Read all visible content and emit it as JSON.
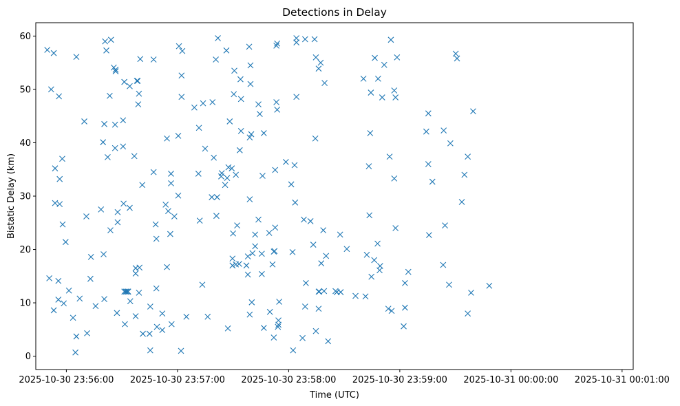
{
  "chart_data": {
    "type": "scatter",
    "title": "Detections in Delay",
    "xlabel": "Time (UTC)",
    "ylabel": "Bistatic Delay (km)",
    "x_unit": "seconds after 2025-10-30 23:56:00 UTC",
    "xlim": [
      -16.5,
      306
    ],
    "ylim": [
      -2.5,
      62.5
    ],
    "x_ticks": [
      {
        "value": 0,
        "label": "2025-10-30 23:56:00"
      },
      {
        "value": 60,
        "label": "2025-10-30 23:57:00"
      },
      {
        "value": 120,
        "label": "2025-10-30 23:58:00"
      },
      {
        "value": 180,
        "label": "2025-10-30 23:59:00"
      },
      {
        "value": 240,
        "label": "2025-10-31 00:00:00"
      },
      {
        "value": 300,
        "label": "2025-10-31 00:01:00"
      }
    ],
    "y_ticks": [
      {
        "value": 0,
        "label": "0"
      },
      {
        "value": 10,
        "label": "10"
      },
      {
        "value": 20,
        "label": "20"
      },
      {
        "value": 30,
        "label": "30"
      },
      {
        "value": 40,
        "label": "40"
      },
      {
        "value": 50,
        "label": "50"
      },
      {
        "value": 60,
        "label": "60"
      }
    ],
    "marker": "x",
    "color": "#1f77b4",
    "series": [
      {
        "name": "detections",
        "points": [
          [
            -10.3,
            57.4
          ],
          [
            -9.2,
            14.6
          ],
          [
            -8.2,
            50.0
          ],
          [
            -6.8,
            56.8
          ],
          [
            -6.8,
            8.6
          ],
          [
            -6.1,
            35.2
          ],
          [
            -6.1,
            28.7
          ],
          [
            -4.3,
            14.1
          ],
          [
            -4.3,
            10.6
          ],
          [
            -4.0,
            48.7
          ],
          [
            -3.6,
            33.2
          ],
          [
            -3.6,
            28.5
          ],
          [
            -2.2,
            37.0
          ],
          [
            -2.0,
            24.7
          ],
          [
            -1.4,
            9.9
          ],
          [
            -0.4,
            21.4
          ],
          [
            1.4,
            12.3
          ],
          [
            3.6,
            7.2
          ],
          [
            4.9,
            0.7
          ],
          [
            5.4,
            3.7
          ],
          [
            5.4,
            56.1
          ],
          [
            7.2,
            10.8
          ],
          [
            9.7,
            44.0
          ],
          [
            10.8,
            26.2
          ],
          [
            11.2,
            4.3
          ],
          [
            13.0,
            14.5
          ],
          [
            13.3,
            18.6
          ],
          [
            15.8,
            9.4
          ],
          [
            18.7,
            27.5
          ],
          [
            19.8,
            40.1
          ],
          [
            20.1,
            19.1
          ],
          [
            20.5,
            43.5
          ],
          [
            20.5,
            10.7
          ],
          [
            20.9,
            59.0
          ],
          [
            21.6,
            57.3
          ],
          [
            22.3,
            37.3
          ],
          [
            23.4,
            48.8
          ],
          [
            23.8,
            23.6
          ],
          [
            24.1,
            59.3
          ],
          [
            25.6,
            54.1
          ],
          [
            26.3,
            43.4
          ],
          [
            26.3,
            39.0
          ],
          [
            26.6,
            53.7
          ],
          [
            26.6,
            53.4
          ],
          [
            27.3,
            8.1
          ],
          [
            27.7,
            25.1
          ],
          [
            27.7,
            27.0
          ],
          [
            30.6,
            44.2
          ],
          [
            30.6,
            39.3
          ],
          [
            30.9,
            28.6
          ],
          [
            31.3,
            51.4
          ],
          [
            31.3,
            12.1
          ],
          [
            31.6,
            6.0
          ],
          [
            32.0,
            12.1
          ],
          [
            32.4,
            12.1
          ],
          [
            33.1,
            12.1
          ],
          [
            33.4,
            12.1
          ],
          [
            34.2,
            50.6
          ],
          [
            34.2,
            27.8
          ],
          [
            34.5,
            10.3
          ],
          [
            36.7,
            37.5
          ],
          [
            37.4,
            7.5
          ],
          [
            37.4,
            15.5
          ],
          [
            37.4,
            16.5
          ],
          [
            38.1,
            51.6
          ],
          [
            38.5,
            51.6
          ],
          [
            38.8,
            47.2
          ],
          [
            39.2,
            11.9
          ],
          [
            39.2,
            49.2
          ],
          [
            39.5,
            16.6
          ],
          [
            39.9,
            55.7
          ],
          [
            41.0,
            32.1
          ],
          [
            41.3,
            4.2
          ],
          [
            44.9,
            4.2
          ],
          [
            45.3,
            9.3
          ],
          [
            45.3,
            1.1
          ],
          [
            47.1,
            55.6
          ],
          [
            47.1,
            34.5
          ],
          [
            48.2,
            24.7
          ],
          [
            48.6,
            12.7
          ],
          [
            48.6,
            22.0
          ],
          [
            48.9,
            5.5
          ],
          [
            51.8,
            8.0
          ],
          [
            51.8,
            4.9
          ],
          [
            53.6,
            28.4
          ],
          [
            54.3,
            16.7
          ],
          [
            54.3,
            40.8
          ],
          [
            55.0,
            27.2
          ],
          [
            56.1,
            22.9
          ],
          [
            56.5,
            34.2
          ],
          [
            56.5,
            32.4
          ],
          [
            56.8,
            6.0
          ],
          [
            58.3,
            26.2
          ],
          [
            60.4,
            30.1
          ],
          [
            60.4,
            41.3
          ],
          [
            60.8,
            58.1
          ],
          [
            61.9,
            1.0
          ],
          [
            62.2,
            48.6
          ],
          [
            62.2,
            52.6
          ],
          [
            62.6,
            57.2
          ],
          [
            64.8,
            7.4
          ],
          [
            69.1,
            46.6
          ],
          [
            71.3,
            34.2
          ],
          [
            71.6,
            42.8
          ],
          [
            72.0,
            25.4
          ],
          [
            73.4,
            13.4
          ],
          [
            73.8,
            47.4
          ],
          [
            74.9,
            38.9
          ],
          [
            76.3,
            7.4
          ],
          [
            78.5,
            29.8
          ],
          [
            78.9,
            47.6
          ],
          [
            79.6,
            37.2
          ],
          [
            80.7,
            55.6
          ],
          [
            81.0,
            26.3
          ],
          [
            81.4,
            29.8
          ],
          [
            81.8,
            59.6
          ],
          [
            83.6,
            33.7
          ],
          [
            83.9,
            34.3
          ],
          [
            85.7,
            32.1
          ],
          [
            86.4,
            57.3
          ],
          [
            86.8,
            33.4
          ],
          [
            87.2,
            5.2
          ],
          [
            87.5,
            35.4
          ],
          [
            88.2,
            44.0
          ],
          [
            89.3,
            35.2
          ],
          [
            89.7,
            17.0
          ],
          [
            89.7,
            18.3
          ],
          [
            90.0,
            23.0
          ],
          [
            90.4,
            49.1
          ],
          [
            90.7,
            53.5
          ],
          [
            91.5,
            34.0
          ],
          [
            91.5,
            17.2
          ],
          [
            92.2,
            24.5
          ],
          [
            93.3,
            17.3
          ],
          [
            93.6,
            38.6
          ],
          [
            94.0,
            51.9
          ],
          [
            94.3,
            42.2
          ],
          [
            94.3,
            48.2
          ],
          [
            97.2,
            17.0
          ],
          [
            98.0,
            15.3
          ],
          [
            98.0,
            18.7
          ],
          [
            98.7,
            58.0
          ],
          [
            99.0,
            7.8
          ],
          [
            99.0,
            41.0
          ],
          [
            99.0,
            29.4
          ],
          [
            99.4,
            54.5
          ],
          [
            99.4,
            51.0
          ],
          [
            99.8,
            41.6
          ],
          [
            100.1,
            10.1
          ],
          [
            100.5,
            19.3
          ],
          [
            101.9,
            20.6
          ],
          [
            101.9,
            22.8
          ],
          [
            103.7,
            47.2
          ],
          [
            103.7,
            25.6
          ],
          [
            104.4,
            45.4
          ],
          [
            105.5,
            15.4
          ],
          [
            105.5,
            19.2
          ],
          [
            105.9,
            33.8
          ],
          [
            106.6,
            41.8
          ],
          [
            106.6,
            5.3
          ],
          [
            109.5,
            23.1
          ],
          [
            109.9,
            8.3
          ],
          [
            111.3,
            17.2
          ],
          [
            112.0,
            3.5
          ],
          [
            112.0,
            19.6
          ],
          [
            112.4,
            19.7
          ],
          [
            112.7,
            34.9
          ],
          [
            112.7,
            24.1
          ],
          [
            113.4,
            47.6
          ],
          [
            113.4,
            58.2
          ],
          [
            113.8,
            58.6
          ],
          [
            113.8,
            46.2
          ],
          [
            114.2,
            5.5
          ],
          [
            114.5,
            6.7
          ],
          [
            114.5,
            5.9
          ],
          [
            114.9,
            10.2
          ],
          [
            118.5,
            36.4
          ],
          [
            121.4,
            32.2
          ],
          [
            122.1,
            19.5
          ],
          [
            122.4,
            1.1
          ],
          [
            123.2,
            35.8
          ],
          [
            123.5,
            28.8
          ],
          [
            124.2,
            59.6
          ],
          [
            124.2,
            48.6
          ],
          [
            124.2,
            58.8
          ],
          [
            127.5,
            3.4
          ],
          [
            128.2,
            25.6
          ],
          [
            128.9,
            59.4
          ],
          [
            128.9,
            9.3
          ],
          [
            129.3,
            13.7
          ],
          [
            131.8,
            25.3
          ],
          [
            133.3,
            20.9
          ],
          [
            134.0,
            59.4
          ],
          [
            134.4,
            40.8
          ],
          [
            134.7,
            56.0
          ],
          [
            134.7,
            4.7
          ],
          [
            136.2,
            8.9
          ],
          [
            136.2,
            12.1
          ],
          [
            136.2,
            53.9
          ],
          [
            136.5,
            12.1
          ],
          [
            137.3,
            55.0
          ],
          [
            137.6,
            17.4
          ],
          [
            138.7,
            23.6
          ],
          [
            139.1,
            12.2
          ],
          [
            139.4,
            51.2
          ],
          [
            140.2,
            18.8
          ],
          [
            141.3,
            2.8
          ],
          [
            145.3,
            12.2
          ],
          [
            146.0,
            12.0
          ],
          [
            147.8,
            22.8
          ],
          [
            148.1,
            12.0
          ],
          [
            151.4,
            20.1
          ],
          [
            156.1,
            11.3
          ],
          [
            160.4,
            52.0
          ],
          [
            161.5,
            11.2
          ],
          [
            162.2,
            19.0
          ],
          [
            163.3,
            35.6
          ],
          [
            163.6,
            26.4
          ],
          [
            164.0,
            41.8
          ],
          [
            164.4,
            49.4
          ],
          [
            164.7,
            14.9
          ],
          [
            166.2,
            18.0
          ],
          [
            166.5,
            55.9
          ],
          [
            168.0,
            21.1
          ],
          [
            168.3,
            52.0
          ],
          [
            169.1,
            16.1
          ],
          [
            169.4,
            16.9
          ],
          [
            170.5,
            48.5
          ],
          [
            171.6,
            54.6
          ],
          [
            173.8,
            8.9
          ],
          [
            174.5,
            37.4
          ],
          [
            175.2,
            59.3
          ],
          [
            175.6,
            8.5
          ],
          [
            177.0,
            49.8
          ],
          [
            177.0,
            33.3
          ],
          [
            177.7,
            48.5
          ],
          [
            177.7,
            24.0
          ],
          [
            178.5,
            56.0
          ],
          [
            182.1,
            5.6
          ],
          [
            182.8,
            13.7
          ],
          [
            182.8,
            9.1
          ],
          [
            184.6,
            15.8
          ],
          [
            194.3,
            42.1
          ],
          [
            195.4,
            45.5
          ],
          [
            195.4,
            36.0
          ],
          [
            195.8,
            22.7
          ],
          [
            197.6,
            32.7
          ],
          [
            203.4,
            17.1
          ],
          [
            203.7,
            42.3
          ],
          [
            204.4,
            24.5
          ],
          [
            206.6,
            13.4
          ],
          [
            207.3,
            39.9
          ],
          [
            210.2,
            56.7
          ],
          [
            210.9,
            55.8
          ],
          [
            213.5,
            28.9
          ],
          [
            214.9,
            34.0
          ],
          [
            216.7,
            37.4
          ],
          [
            216.7,
            8.0
          ],
          [
            218.5,
            11.9
          ],
          [
            219.6,
            45.9
          ],
          [
            228.3,
            13.2
          ]
        ]
      }
    ]
  }
}
